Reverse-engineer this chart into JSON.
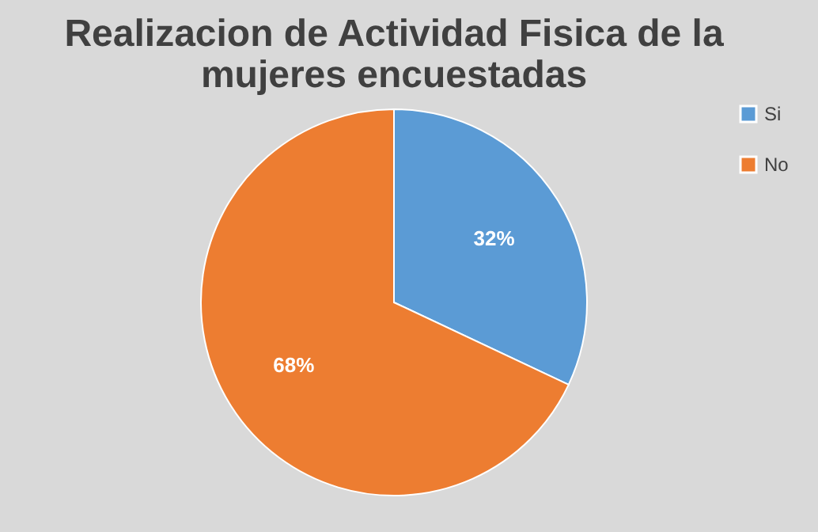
{
  "chart_data": {
    "type": "pie",
    "title": "Realizacion de Actividad Fisica de la\nmujeres encuestadas",
    "categories": [
      "Si",
      "No"
    ],
    "values": [
      32,
      68
    ],
    "colors": [
      "#5b9bd5",
      "#ed7d31"
    ],
    "value_labels": [
      "32%",
      "68%"
    ],
    "legend": "right"
  }
}
